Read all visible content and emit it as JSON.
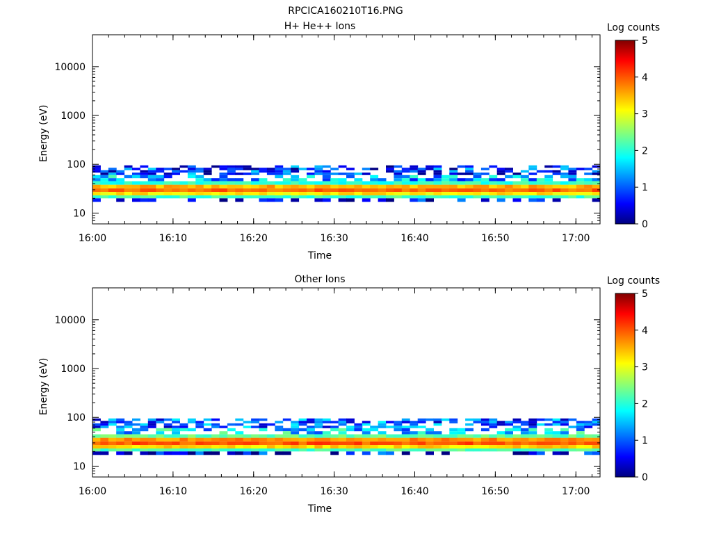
{
  "figure": {
    "title": "RPCICA160210T16.PNG"
  },
  "chart_data": [
    {
      "type": "heatmap",
      "title": "H+ He++ Ions",
      "xlabel": "Time",
      "ylabel": "Energy (eV)",
      "x_ticks": [
        "16:00",
        "16:10",
        "16:20",
        "16:30",
        "16:40",
        "16:50",
        "17:00"
      ],
      "xlim": [
        "16:00",
        "17:03"
      ],
      "y_scale": "log",
      "y_ticks": [
        10,
        100,
        1000,
        10000
      ],
      "y_tick_labels": [
        "10",
        "100",
        "1000",
        "10000"
      ],
      "ylim": [
        6,
        45000
      ],
      "colorbar": {
        "label": "Log counts",
        "range": [
          0,
          5
        ],
        "ticks": [
          0,
          1,
          2,
          3,
          4,
          5
        ],
        "tick_labels": [
          "0",
          "1",
          "2",
          "3",
          "4",
          "5"
        ]
      },
      "bands": [
        {
          "energy_range_eV": [
            60,
            95
          ],
          "log_counts": 0.8,
          "fill": "patchy"
        },
        {
          "energy_range_eV": [
            45,
            60
          ],
          "log_counts": 1.4,
          "fill": "patchy"
        },
        {
          "energy_range_eV": [
            38,
            45
          ],
          "log_counts": 2.0,
          "fill": "solid"
        },
        {
          "energy_range_eV": [
            32,
            38
          ],
          "log_counts": 3.5,
          "fill": "solid"
        },
        {
          "energy_range_eV": [
            27,
            32
          ],
          "log_counts": 3.9,
          "fill": "solid"
        },
        {
          "energy_range_eV": [
            23,
            27
          ],
          "log_counts": 3.2,
          "fill": "solid"
        },
        {
          "energy_range_eV": [
            20,
            23
          ],
          "log_counts": 2.1,
          "fill": "solid"
        },
        {
          "energy_range_eV": [
            17,
            20
          ],
          "log_counts": 0.4,
          "fill": "patchy"
        }
      ]
    },
    {
      "type": "heatmap",
      "title": "Other Ions",
      "xlabel": "Time",
      "ylabel": "Energy (eV)",
      "x_ticks": [
        "16:00",
        "16:10",
        "16:20",
        "16:30",
        "16:40",
        "16:50",
        "17:00"
      ],
      "xlim": [
        "16:00",
        "17:03"
      ],
      "y_scale": "log",
      "y_ticks": [
        10,
        100,
        1000,
        10000
      ],
      "y_tick_labels": [
        "10",
        "100",
        "1000",
        "10000"
      ],
      "ylim": [
        6,
        45000
      ],
      "colorbar": {
        "label": "Log counts",
        "range": [
          0,
          5
        ],
        "ticks": [
          0,
          1,
          2,
          3,
          4,
          5
        ],
        "tick_labels": [
          "0",
          "1",
          "2",
          "3",
          "4",
          "5"
        ]
      },
      "bands": [
        {
          "energy_range_eV": [
            60,
            95
          ],
          "log_counts": 1.0,
          "fill": "patchy"
        },
        {
          "energy_range_eV": [
            45,
            60
          ],
          "log_counts": 1.6,
          "fill": "patchy"
        },
        {
          "energy_range_eV": [
            38,
            45
          ],
          "log_counts": 2.3,
          "fill": "solid"
        },
        {
          "energy_range_eV": [
            32,
            38
          ],
          "log_counts": 3.7,
          "fill": "solid"
        },
        {
          "energy_range_eV": [
            27,
            32
          ],
          "log_counts": 4.0,
          "fill": "solid"
        },
        {
          "energy_range_eV": [
            23,
            27
          ],
          "log_counts": 3.3,
          "fill": "solid"
        },
        {
          "energy_range_eV": [
            20,
            23
          ],
          "log_counts": 2.2,
          "fill": "solid"
        },
        {
          "energy_range_eV": [
            17,
            20
          ],
          "log_counts": 0.5,
          "fill": "patchy"
        }
      ]
    }
  ]
}
